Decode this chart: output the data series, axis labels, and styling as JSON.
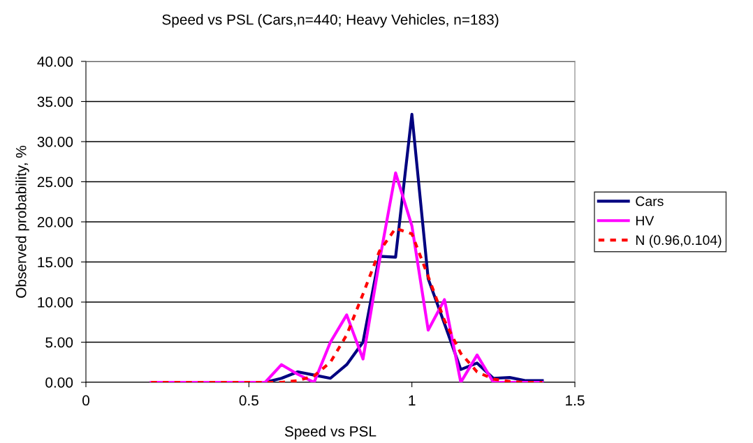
{
  "chart_data": {
    "type": "line",
    "title": "Speed vs PSL (Cars,n=440; Heavy Vehicles, n=183)",
    "xlabel": "Speed vs PSL",
    "ylabel": "Observed probability, %",
    "x": [
      0.2,
      0.25,
      0.3,
      0.35,
      0.4,
      0.45,
      0.5,
      0.55,
      0.6,
      0.65,
      0.7,
      0.75,
      0.8,
      0.85,
      0.9,
      0.95,
      1.0,
      1.05,
      1.1,
      1.15,
      1.2,
      1.25,
      1.3,
      1.35,
      1.4
    ],
    "series": [
      {
        "name": "Cars",
        "color": "#000080",
        "line_style": "solid",
        "values": [
          null,
          null,
          null,
          null,
          null,
          0,
          0,
          0,
          0.5,
          1.3,
          0.9,
          0.5,
          2.2,
          5.0,
          15.7,
          15.6,
          33.4,
          12.9,
          7.3,
          1.6,
          2.4,
          0.5,
          0.6,
          0.2,
          0.2
        ]
      },
      {
        "name": "HV",
        "color": "#ff00ff",
        "line_style": "solid",
        "values": [
          0,
          0,
          0,
          0,
          0,
          0,
          0,
          0,
          2.2,
          1.0,
          0,
          5.0,
          8.4,
          2.9,
          15.0,
          26.1,
          19.5,
          6.5,
          10.3,
          0,
          3.4,
          0,
          0,
          0,
          0
        ]
      },
      {
        "name": "N (0.96,0.104)",
        "color": "#ff0000",
        "line_style": "dashed",
        "values": [
          0,
          0,
          0,
          0,
          0,
          0,
          0,
          0,
          0,
          0.2,
          0.8,
          2.5,
          5.9,
          11.0,
          16.3,
          19.2,
          18.5,
          13.2,
          7.7,
          3.6,
          1.3,
          0.4,
          0.1,
          0,
          0
        ]
      }
    ],
    "xlim": [
      0,
      1.5
    ],
    "xticks": [
      0,
      0.5,
      1,
      1.5
    ],
    "ylim": [
      0,
      40
    ],
    "yticks": [
      {
        "value": 0,
        "label": "0.00"
      },
      {
        "value": 5,
        "label": "5.00"
      },
      {
        "value": 10,
        "label": "10.00"
      },
      {
        "value": 15,
        "label": "15.00"
      },
      {
        "value": 20,
        "label": "20.00"
      },
      {
        "value": 25,
        "label": "25.00"
      },
      {
        "value": 30,
        "label": "30.00"
      },
      {
        "value": 35,
        "label": "35.00"
      },
      {
        "value": 40,
        "label": "40.00"
      }
    ],
    "grid": "y",
    "legend": "right",
    "marker": "none"
  }
}
